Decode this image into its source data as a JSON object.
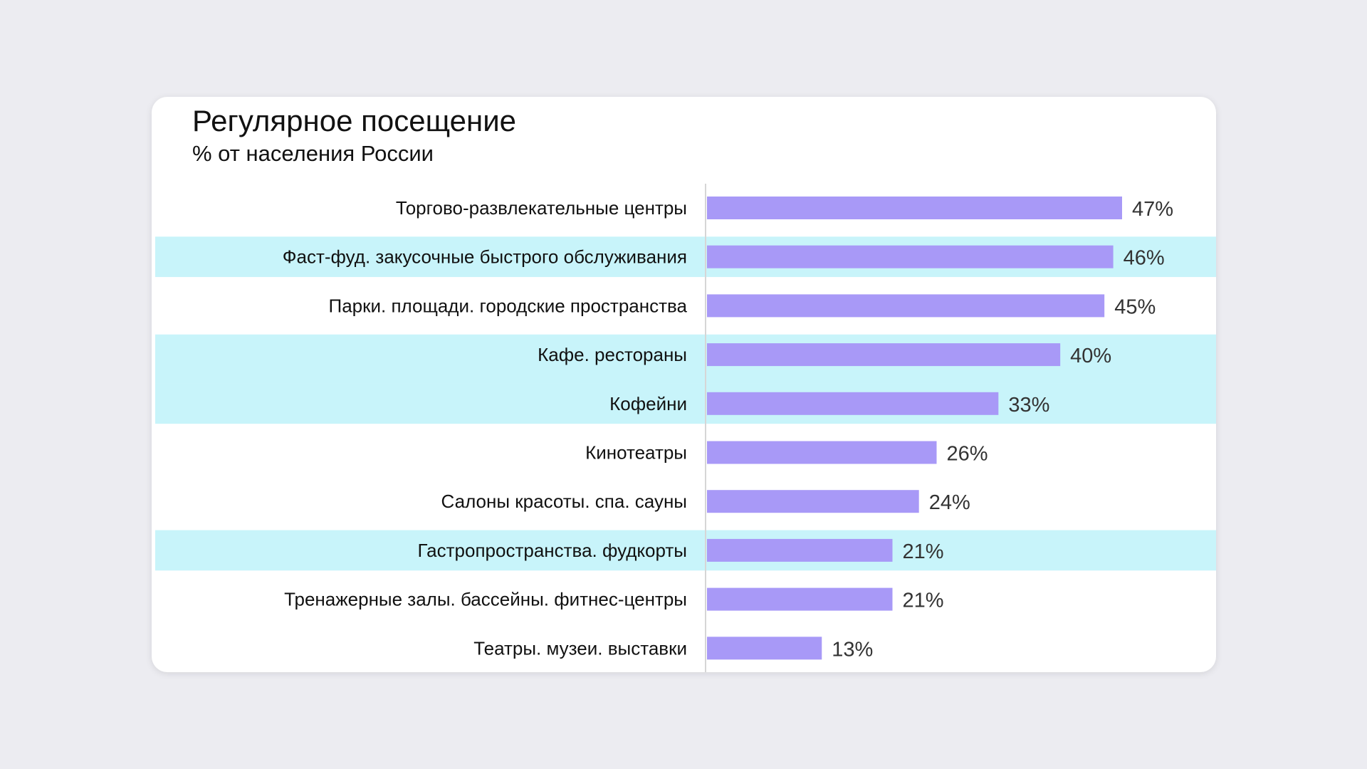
{
  "chart_data": {
    "type": "bar",
    "orientation": "horizontal",
    "title": "Регулярное посещение",
    "subtitle": "% от населения России",
    "categories": [
      "Торгово-развлекательные центры",
      "Фаст-фуд. закусочные быстрого обслуживания",
      "Парки. площади. городские пространства",
      "Кафе. рестораны",
      "Кофейни",
      "Кинотеатры",
      "Салоны красоты. спа. сауны",
      "Гастропространства. фудкорты",
      "Тренажерные залы. бассейны. фитнес-центры",
      "Театры. музеи. выставки"
    ],
    "values": [
      47,
      46,
      45,
      40,
      33,
      26,
      24,
      21,
      21,
      13
    ],
    "value_labels": [
      "47%",
      "46%",
      "45%",
      "40%",
      "33%",
      "26%",
      "24%",
      "21%",
      "21%",
      "13%"
    ],
    "highlighted": [
      false,
      true,
      false,
      true,
      true,
      false,
      false,
      true,
      false,
      false
    ],
    "xlim": [
      0,
      47
    ],
    "grid": false,
    "legend": "none",
    "colors": {
      "bar": "#a899f7",
      "highlight": "#c8f4fa",
      "label": "#111111",
      "value_label": "#333333",
      "axis": "#d6d6d6"
    }
  }
}
